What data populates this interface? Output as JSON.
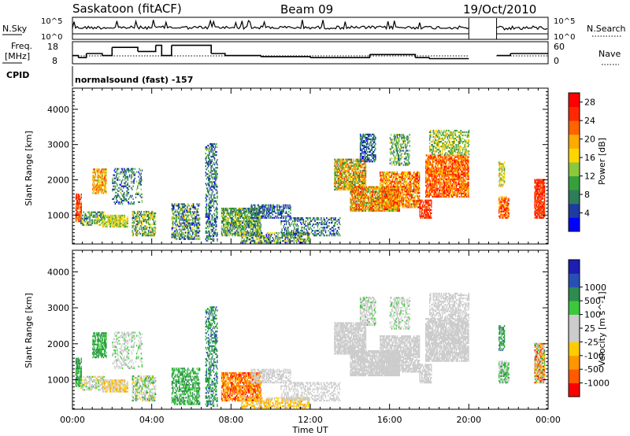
{
  "header": {
    "station": "Saskatoon (fitACF)",
    "beam": "Beam 09",
    "date": "19/Oct/2010"
  },
  "colors": {
    "velocity_scale": [
      "#ff0000",
      "#ff5a00",
      "#ff9600",
      "#ffcc00",
      "#cccccc",
      "#cccccc",
      "#3cc83c",
      "#2d8c50",
      "#2850b4",
      "#1e1eb4"
    ],
    "power_scale": [
      "#0000ff",
      "#1e3ca0",
      "#2d7d5a",
      "#37a03c",
      "#8cc83c",
      "#ffd700",
      "#ffaa00",
      "#ff6400",
      "#ff2800",
      "#ff0000"
    ]
  },
  "chart_data": [
    {
      "type": "line",
      "name": "nsky-nsearch-panel",
      "left_label": "N.Sky",
      "right_label": "N.Search",
      "left_ticks": [
        "10^5",
        "10^0"
      ],
      "right_ticks": [
        "10^5",
        "10^0"
      ],
      "x_range_hours": [
        0,
        24
      ]
    },
    {
      "type": "line",
      "name": "freq-nave-panel",
      "left_label_line1": "Freq.",
      "left_label_line2": "[MHz]",
      "right_label": "Nave",
      "left_ticks": [
        "18",
        "8"
      ],
      "right_ticks": [
        "60",
        "0"
      ],
      "freq_steps": [
        [
          0.0,
          12
        ],
        [
          0.3,
          11
        ],
        [
          0.7,
          13
        ],
        [
          1.5,
          12
        ],
        [
          2.0,
          16
        ],
        [
          3.3,
          14
        ],
        [
          4.2,
          17
        ],
        [
          4.5,
          12
        ],
        [
          5.0,
          17
        ],
        [
          7.0,
          13
        ],
        [
          7.7,
          12
        ],
        [
          9.5,
          11.5
        ],
        [
          12.0,
          11
        ],
        [
          15.0,
          12.5
        ],
        [
          17.3,
          11
        ],
        [
          18.0,
          10.5
        ],
        [
          20.0,
          null
        ],
        [
          21.4,
          12
        ],
        [
          22.1,
          13
        ],
        [
          24.0,
          13
        ]
      ]
    },
    {
      "type": "table",
      "name": "cpid-row",
      "label": "CPID",
      "value": "normalsound (fast) -157"
    },
    {
      "type": "heatmap",
      "name": "power-panel",
      "ylabel": "Slant Range [km]",
      "yticks": [
        "1000",
        "2000",
        "3000",
        "4000"
      ],
      "ylim": [
        180,
        4600
      ],
      "colorbar_label": "Power [dB]",
      "colorbar_ticks": [
        "4",
        "8",
        "12",
        "16",
        "20",
        "24",
        "28"
      ],
      "colorbar_range": [
        0,
        30
      ]
    },
    {
      "type": "heatmap",
      "name": "velocity-panel",
      "ylabel": "Slant Range [km]",
      "yticks": [
        "1000",
        "2000",
        "3000",
        "4000"
      ],
      "ylim": [
        180,
        4600
      ],
      "colorbar_label": "Velocity [m s^-1]",
      "colorbar_ticks": [
        "-1000",
        "-500",
        "-100",
        "-25",
        "25",
        "100",
        "500",
        "1000"
      ],
      "xlabel": "Time UT",
      "xticks": [
        "00:00",
        "04:00",
        "08:00",
        "12:00",
        "16:00",
        "20:00",
        "00:00"
      ],
      "x_range_hours": [
        0,
        24
      ]
    }
  ]
}
